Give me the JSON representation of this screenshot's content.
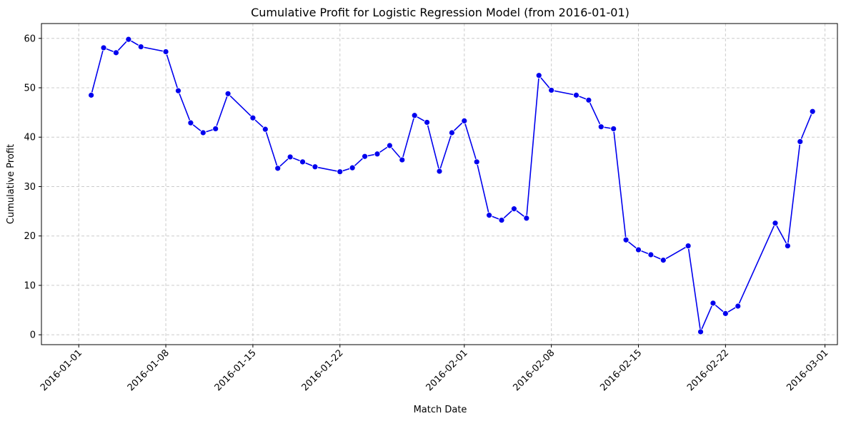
{
  "chart_data": {
    "type": "line",
    "title": "Cumulative Profit for Logistic Regression Model (from 2016-01-01)",
    "xlabel": "Match Date",
    "ylabel": "Cumulative Profit",
    "xlim": [
      "2015-12-29",
      "2016-03-02"
    ],
    "ylim": [
      -2,
      63
    ],
    "grid": true,
    "line_color": "#0000ee",
    "marker_color": "#0000ee",
    "x_ticks": [
      "2016-01-01",
      "2016-01-08",
      "2016-01-15",
      "2016-01-22",
      "2016-02-01",
      "2016-02-08",
      "2016-02-15",
      "2016-02-22",
      "2016-03-01"
    ],
    "y_ticks": [
      0,
      10,
      20,
      30,
      40,
      50,
      60
    ],
    "series": [
      {
        "x": [
          "2016-01-02",
          "2016-01-03",
          "2016-01-04",
          "2016-01-05",
          "2016-01-06",
          "2016-01-08",
          "2016-01-09",
          "2016-01-10",
          "2016-01-11",
          "2016-01-12",
          "2016-01-13",
          "2016-01-15",
          "2016-01-16",
          "2016-01-17",
          "2016-01-18",
          "2016-01-19",
          "2016-01-20",
          "2016-01-22",
          "2016-01-23",
          "2016-01-24",
          "2016-01-25",
          "2016-01-26",
          "2016-01-27",
          "2016-01-28",
          "2016-01-29",
          "2016-01-30",
          "2016-01-31",
          "2016-02-01",
          "2016-02-02",
          "2016-02-03",
          "2016-02-04",
          "2016-02-05",
          "2016-02-06",
          "2016-02-07",
          "2016-02-08",
          "2016-02-10",
          "2016-02-11",
          "2016-02-12",
          "2016-02-13",
          "2016-02-14",
          "2016-02-15",
          "2016-02-16",
          "2016-02-17",
          "2016-02-19",
          "2016-02-20",
          "2016-02-21",
          "2016-02-22",
          "2016-02-23",
          "2016-02-26",
          "2016-02-27",
          "2016-02-28",
          "2016-02-29"
        ],
        "y": [
          48.5,
          58.1,
          57.1,
          59.8,
          58.3,
          57.3,
          49.4,
          42.9,
          40.9,
          41.7,
          48.8,
          43.9,
          41.6,
          33.7,
          36.0,
          35.0,
          34.0,
          33.0,
          33.8,
          36.1,
          36.6,
          38.3,
          35.4,
          44.4,
          43.0,
          33.1,
          40.9,
          43.3,
          35.0,
          24.2,
          23.2,
          25.5,
          23.6,
          52.5,
          49.5,
          48.5,
          47.5,
          42.1,
          41.7,
          19.2,
          17.2,
          16.2,
          15.1,
          18.0,
          0.6,
          6.4,
          4.3,
          5.8,
          22.6,
          18.0,
          39.1,
          45.2
        ]
      }
    ]
  }
}
